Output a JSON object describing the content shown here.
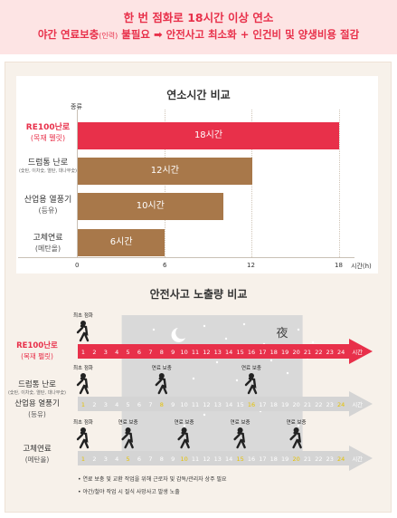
{
  "banner": {
    "line1": "한 번 점화로 18시간 이상 연소",
    "line2_a": "야간 연료보충",
    "line2_b": "(인력)",
    "line2_c": " 불필요 ➡ 안전사고 최소화 + 인건비 및 양생비용 절감"
  },
  "chart1": {
    "ylabel": "종류",
    "xunit": "시간(h)",
    "rows": [
      {
        "name": "RE100난로",
        "sub": "(목재 펠릿)",
        "tiny": "",
        "highlight": true
      },
      {
        "name": "드럼통 난로",
        "sub": "",
        "tiny": "(숯탄, 이차숯, 열탄, 대나무숯)",
        "highlight": false
      },
      {
        "name": "산업용 열풍기",
        "sub": "(등유)",
        "tiny": "",
        "highlight": false
      },
      {
        "name": "고체연료",
        "sub": "(메탄올)",
        "tiny": "",
        "highlight": false
      }
    ],
    "ticks": [
      "0",
      "6",
      "12",
      "18"
    ]
  },
  "chart_data": [
    {
      "type": "bar",
      "orientation": "horizontal",
      "title": "연소시간 비교",
      "ylabel": "종류",
      "xlabel": "시간(h)",
      "categories": [
        "RE100난로 (목재 펠릿)",
        "드럼통 난로",
        "산업용 열풍기 (등유)",
        "고체연료 (메탄올)"
      ],
      "values": [
        18,
        12,
        10,
        6
      ],
      "data_labels": [
        "18시간",
        "12시간",
        "10시간",
        "6시간"
      ],
      "colors": [
        "#e8304a",
        "#a8784a",
        "#a8784a",
        "#a8784a"
      ],
      "xlim": [
        0,
        19
      ],
      "xticks": [
        0,
        6,
        12,
        18
      ]
    },
    {
      "type": "timeline",
      "title": "안전사고 노출량 비교",
      "hours": [
        1,
        2,
        3,
        4,
        5,
        6,
        7,
        8,
        9,
        10,
        11,
        12,
        13,
        14,
        15,
        16,
        17,
        18,
        19,
        20,
        21,
        22,
        23,
        24
      ],
      "end_label": "시간",
      "night_label": "夜",
      "night_range": [
        5,
        20
      ],
      "rows": [
        {
          "name": "RE100난로 (목재 펠릿)",
          "events": [
            {
              "hour": 1,
              "label": "최초 점화"
            }
          ],
          "style": "red"
        },
        {
          "name": "드럼통 난로 / 산업용 열풍기 (등유)",
          "events": [
            {
              "hour": 1,
              "label": "최초 점화"
            },
            {
              "hour": 8,
              "label": "연료 보충"
            },
            {
              "hour": 16,
              "label": "연료 보충"
            }
          ],
          "style": "gray"
        },
        {
          "name": "고체연료 (메탄올)",
          "events": [
            {
              "hour": 1,
              "label": "최초 점화"
            },
            {
              "hour": 5,
              "label": "연료 보충"
            },
            {
              "hour": 10,
              "label": "연료 보충"
            },
            {
              "hour": 15,
              "label": "연료 보충"
            },
            {
              "hour": 20,
              "label": "연료 보충"
            }
          ],
          "style": "gray"
        }
      ]
    }
  ],
  "chart2": {
    "row1": {
      "name": "RE100난로",
      "sub": "(목재 펠릿)"
    },
    "row2a": {
      "name": "드럼통 난로",
      "tiny": "(숯탄, 이차숯, 열탄, 대나무숯)"
    },
    "row2b": {
      "name": "산업용 열풍기",
      "sub": "(등유)"
    },
    "row3": {
      "name": "고체연료",
      "sub": "(메탄올)"
    }
  },
  "notes": [
    "• 연료 보충 및 교환 작업을 위해 근로자 및 감독/관리자 상주 필요",
    "• 야간/철야 작업 시 질식 사망사고 발생 노출"
  ]
}
